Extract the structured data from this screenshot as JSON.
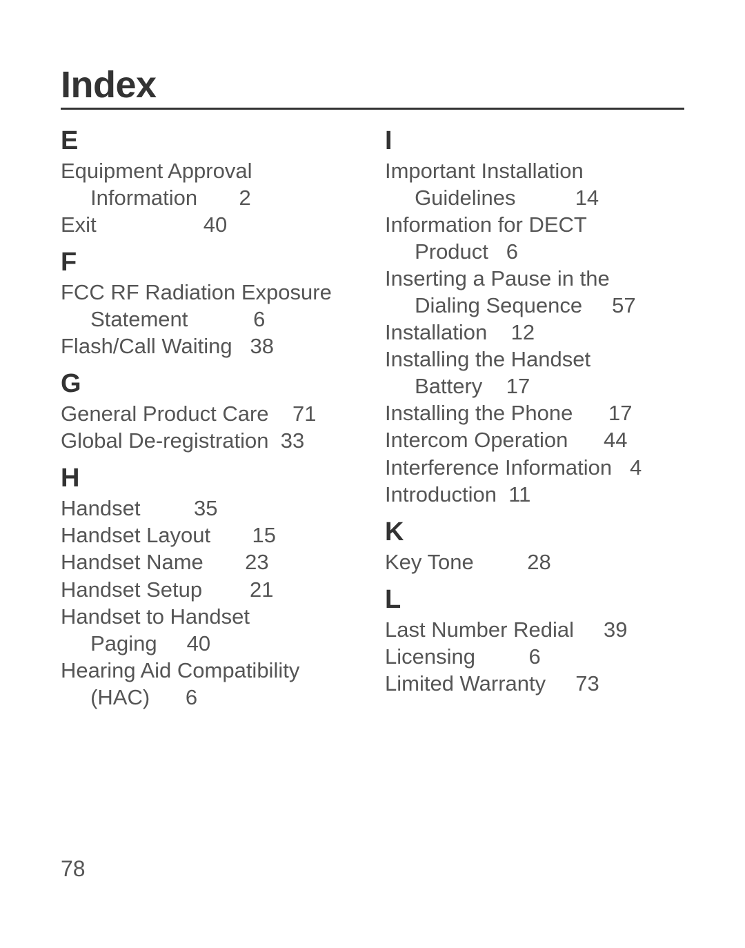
{
  "title": "Index",
  "page_number": "78",
  "typography": {
    "title_fontsize": 54,
    "letter_fontsize": 38,
    "entry_fontsize": 31,
    "title_color": "#333333",
    "entry_color": "#555555",
    "background": "#ffffff",
    "rule_color": "#333333"
  },
  "columns": [
    {
      "sections": [
        {
          "letter": "E",
          "entries": [
            {
              "text": "Equipment Approval\n     Information",
              "page": "2"
            },
            {
              "text": "Exit",
              "page": "40"
            }
          ]
        },
        {
          "letter": "F",
          "entries": [
            {
              "text": "FCC RF Radiation Exposure\n     Statement",
              "page": "6"
            },
            {
              "text": "Flash/Call Waiting",
              "page": "38"
            }
          ]
        },
        {
          "letter": "G",
          "entries": [
            {
              "text": "General Product Care",
              "page": "71"
            },
            {
              "text": "Global De-registration",
              "page": "33"
            }
          ]
        },
        {
          "letter": "H",
          "entries": [
            {
              "text": "Handset",
              "page": "35"
            },
            {
              "text": "Handset Layout",
              "page": "15"
            },
            {
              "text": "Handset Name",
              "page": "23"
            },
            {
              "text": "Handset Setup",
              "page": "21"
            },
            {
              "text": "Handset to Handset\n     Paging",
              "page": "40"
            },
            {
              "text": "Hearing Aid Compatibility\n     (HAC)",
              "page": "6"
            }
          ]
        }
      ]
    },
    {
      "sections": [
        {
          "letter": "I",
          "entries": [
            {
              "text": "Important Installation\n     Guidelines",
              "page": "14"
            },
            {
              "text": "Information for DECT\n     Product",
              "page": "6"
            },
            {
              "text": "Inserting a Pause in the\n     Dialing Sequence",
              "page": "57"
            },
            {
              "text": "Installation",
              "page": "12"
            },
            {
              "text": "Installing the Handset\n     Battery",
              "page": "17"
            },
            {
              "text": "Installing the Phone",
              "page": "17"
            },
            {
              "text": "Intercom Operation",
              "page": "44"
            },
            {
              "text": "Interference Information",
              "page": "4"
            },
            {
              "text": "Introduction",
              "page": "11"
            }
          ]
        },
        {
          "letter": "K",
          "entries": [
            {
              "text": "Key Tone",
              "page": "28"
            }
          ]
        },
        {
          "letter": "L",
          "entries": [
            {
              "text": "Last Number Redial",
              "page": "39"
            },
            {
              "text": "Licensing",
              "page": "6"
            },
            {
              "text": "Limited Warranty",
              "page": "73"
            }
          ]
        }
      ]
    }
  ]
}
